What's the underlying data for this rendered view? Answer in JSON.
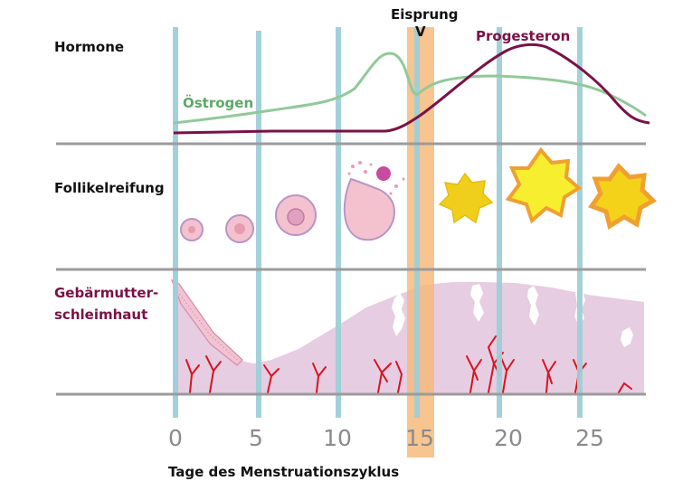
{
  "labels": {
    "hormones": "Hormone",
    "oestrogen": "Östrogen",
    "progesterone": "Progesteron",
    "ovulation": "Eisprung",
    "ovulation_marker": "V",
    "follicle": "Follikelreifung",
    "endometrium_line1": "Gebärmutter-",
    "endometrium_line2": "schleimhaut",
    "x_axis": "Tage des Menstruationszyklus"
  },
  "ticks": [
    "0",
    "5",
    "10",
    "15",
    "20",
    "25"
  ],
  "colors": {
    "day_lines": "#9fcfd8",
    "ovulation_band": "#f7b777",
    "oestrogen": "#92c99a",
    "progesterone": "#7a1148",
    "endometrium": "#e6cde2",
    "vessels": "#d9131f",
    "follicle_pink": "#f4c2cf",
    "follicle_yellow": "#f4d21a",
    "separator": "#9b9b9b"
  }
}
